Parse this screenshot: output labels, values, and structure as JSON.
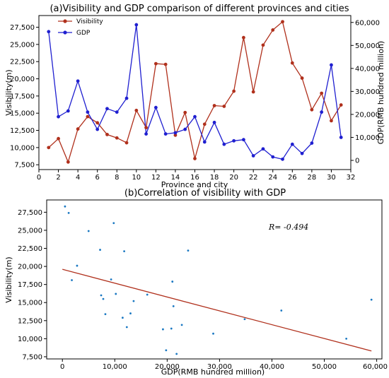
{
  "chart_data": [
    {
      "type": "line",
      "title": "(a)Visibility and GDP comparison of different provinces and cities",
      "xlabel": "Province and city",
      "ylabel": "Visibility(m)",
      "y2label": "GDP(RMB hundred million)",
      "x": [
        1,
        2,
        3,
        4,
        5,
        6,
        7,
        8,
        9,
        10,
        11,
        12,
        13,
        14,
        15,
        16,
        17,
        18,
        19,
        20,
        21,
        22,
        23,
        24,
        25,
        26,
        27,
        28,
        29,
        30,
        31
      ],
      "xlim": [
        0,
        32
      ],
      "xticks": [
        "0",
        "2",
        "4",
        "6",
        "8",
        "10",
        "12",
        "14",
        "16",
        "18",
        "20",
        "22",
        "24",
        "26",
        "28",
        "30",
        "32"
      ],
      "ylim": [
        6800,
        29200
      ],
      "yticks": [
        "7,500",
        "10,000",
        "12,500",
        "15,000",
        "17,500",
        "20,000",
        "22,500",
        "25,000",
        "27,500"
      ],
      "y2lim": [
        -4000,
        63000
      ],
      "y2ticks": [
        "0",
        "10,000",
        "20,000",
        "30,000",
        "40,000",
        "50,000",
        "60,000"
      ],
      "legend_position": "top-left",
      "grid": false,
      "series": [
        {
          "name": "Visibility",
          "axis": "left",
          "color": "#b0301c",
          "marker": "circle",
          "values": [
            10000,
            11300,
            7900,
            12700,
            14500,
            13600,
            11900,
            11400,
            10700,
            15400,
            12900,
            22200,
            22100,
            11800,
            15100,
            8400,
            13400,
            16100,
            16000,
            18200,
            26000,
            18100,
            24900,
            27100,
            28300,
            22300,
            20100,
            15500,
            17900,
            13900,
            16200
          ]
        },
        {
          "name": "GDP",
          "axis": "right",
          "color": "#1f1fd0",
          "marker": "circle",
          "values": [
            56000,
            19000,
            21500,
            34500,
            21000,
            13500,
            22500,
            21000,
            27000,
            59000,
            11500,
            23000,
            11500,
            12000,
            13500,
            19000,
            8000,
            16500,
            7000,
            8500,
            9000,
            2000,
            5000,
            1500,
            500,
            7000,
            3000,
            7500,
            21000,
            41500,
            10000
          ]
        }
      ]
    },
    {
      "type": "scatter",
      "title": "(b)Correlation of visibility with GDP",
      "xlabel": "GDP(RMB hundred million)",
      "ylabel": "Visibility(m)",
      "xlim": [
        -3000,
        61000
      ],
      "xticks": [
        "0",
        "10,000",
        "20,000",
        "30,000",
        "40,000",
        "50,000",
        "60,000"
      ],
      "ylim": [
        7200,
        29200
      ],
      "yticks": [
        "7,500",
        "10,000",
        "12,500",
        "15,000",
        "17,500",
        "20,000",
        "22,500",
        "25,000",
        "27,500"
      ],
      "point_color": "#1a78c2",
      "annotation": "R= -0.494",
      "points": [
        {
          "x": 500,
          "y": 28300
        },
        {
          "x": 1200,
          "y": 27400
        },
        {
          "x": 1800,
          "y": 18100
        },
        {
          "x": 2800,
          "y": 20100
        },
        {
          "x": 5000,
          "y": 24900
        },
        {
          "x": 7200,
          "y": 22300
        },
        {
          "x": 7400,
          "y": 16000
        },
        {
          "x": 7800,
          "y": 15500
        },
        {
          "x": 8200,
          "y": 13400
        },
        {
          "x": 9300,
          "y": 18200
        },
        {
          "x": 9800,
          "y": 26000
        },
        {
          "x": 10200,
          "y": 16200
        },
        {
          "x": 11500,
          "y": 12900
        },
        {
          "x": 11800,
          "y": 22100
        },
        {
          "x": 12300,
          "y": 11600
        },
        {
          "x": 13000,
          "y": 13500
        },
        {
          "x": 13600,
          "y": 15200
        },
        {
          "x": 16200,
          "y": 16100
        },
        {
          "x": 19200,
          "y": 11300
        },
        {
          "x": 19800,
          "y": 8400
        },
        {
          "x": 20800,
          "y": 11400
        },
        {
          "x": 21000,
          "y": 17900
        },
        {
          "x": 21200,
          "y": 14500
        },
        {
          "x": 21800,
          "y": 7900
        },
        {
          "x": 22800,
          "y": 11900
        },
        {
          "x": 24000,
          "y": 22200
        },
        {
          "x": 28800,
          "y": 10700
        },
        {
          "x": 34800,
          "y": 12700
        },
        {
          "x": 41800,
          "y": 13900
        },
        {
          "x": 54200,
          "y": 10000
        },
        {
          "x": 59000,
          "y": 15400
        }
      ],
      "regression": {
        "x": [
          0,
          59000
        ],
        "y": [
          19600,
          8300
        ],
        "color": "#b0301c"
      }
    }
  ]
}
